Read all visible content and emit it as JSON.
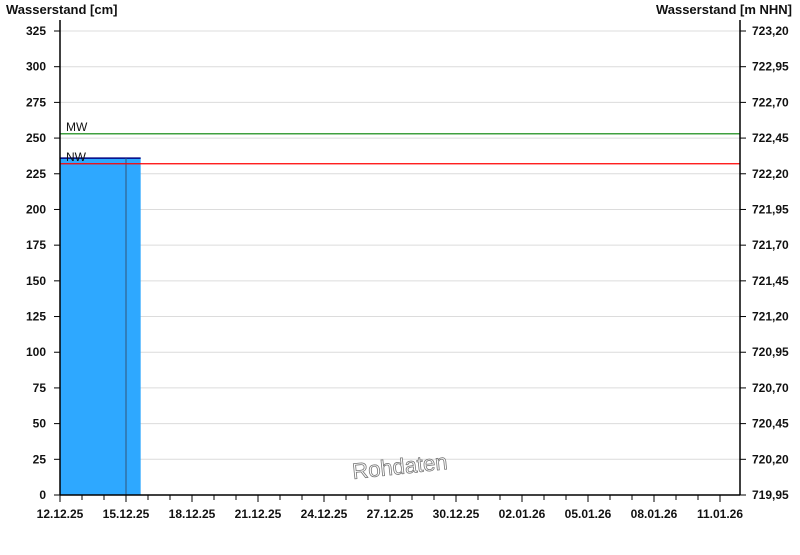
{
  "chart_data": {
    "type": "bar",
    "ylabel_left": "Wasserstand [cm]",
    "ylabel_right": "Wasserstand [m NHN]",
    "ylim": [
      0,
      325
    ],
    "ylim_right": [
      719.95,
      723.2
    ],
    "yticks_left": [
      "0",
      "25",
      "50",
      "75",
      "100",
      "125",
      "150",
      "175",
      "200",
      "225",
      "250",
      "275",
      "300",
      "325"
    ],
    "yticks_right": [
      "719,95",
      "720,20",
      "720,45",
      "720,70",
      "720,95",
      "721,20",
      "721,45",
      "721,70",
      "721,95",
      "722,20",
      "722,45",
      "722,70",
      "722,95",
      "723,20"
    ],
    "xlim": [
      "2025-12-12",
      "2026-01-11T21:00"
    ],
    "xticks": [
      "12.12.25",
      "15.12.25",
      "18.12.25",
      "21.12.25",
      "24.12.25",
      "27.12.25",
      "30.12.25",
      "02.01.26",
      "05.01.26",
      "08.01.26",
      "11.01.26"
    ],
    "grid": true,
    "bar": {
      "x_start": "2025-12-12",
      "x_end": "2025-12-15T16:00",
      "value": 236,
      "color": "#2ea8ff",
      "edge": "#000080"
    },
    "marker_line": {
      "x": "2025-12-15"
    },
    "reference_lines": [
      {
        "label": "MW",
        "value": 253,
        "color": "#008000"
      },
      {
        "label": "NW",
        "value": 232,
        "color": "#ff0000"
      }
    ],
    "watermark": "Rohdaten"
  }
}
